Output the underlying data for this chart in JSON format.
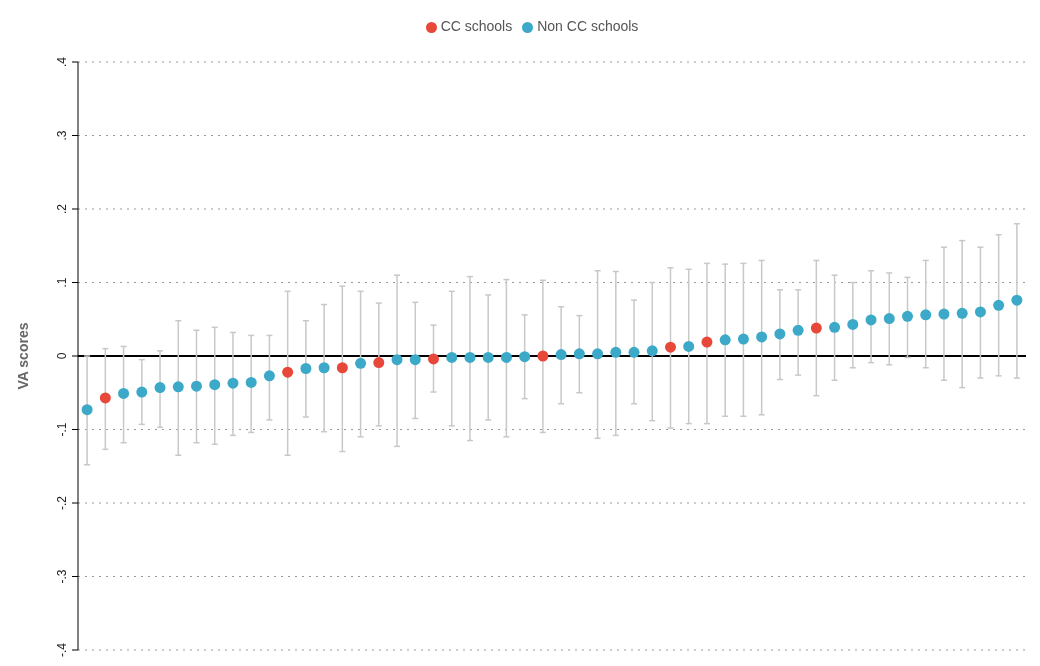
{
  "chart_data": {
    "type": "scatter",
    "ylabel": "VA scores",
    "categories": [
      null,
      null,
      null,
      null,
      null,
      null,
      null,
      null,
      null,
      null,
      null,
      null,
      null,
      null,
      null,
      null,
      null,
      null,
      null,
      null,
      null,
      null,
      null,
      null,
      null,
      null,
      null,
      null,
      null,
      null,
      null,
      null,
      null,
      null,
      null,
      null,
      null,
      null,
      null,
      null,
      null,
      null,
      null,
      null,
      null,
      null,
      null,
      null,
      null,
      null,
      null,
      null
    ],
    "series": [
      {
        "name": "Non CC schools",
        "color": "#3ba9c7",
        "values": [
          -0.073,
          null,
          -0.051,
          -0.049,
          -0.043,
          -0.042,
          -0.041,
          -0.039,
          -0.037,
          -0.036,
          -0.027,
          null,
          -0.017,
          -0.016,
          null,
          -0.01,
          null,
          -0.005,
          -0.005,
          null,
          -0.002,
          -0.002,
          -0.002,
          -0.002,
          -0.001,
          null,
          0.002,
          0.003,
          0.003,
          0.005,
          0.005,
          0.007,
          null,
          0.013,
          null,
          0.022,
          0.023,
          0.026,
          0.03,
          0.035,
          null,
          0.039,
          0.043,
          0.049,
          0.051,
          0.054,
          0.056,
          0.057,
          0.058,
          0.06,
          0.069,
          0.076
        ],
        "errors": [
          [
            -0.148,
            0.0
          ],
          null,
          [
            -0.118,
            0.013
          ],
          [
            -0.093,
            -0.005
          ],
          [
            -0.097,
            0.007
          ],
          [
            -0.135,
            0.048
          ],
          [
            -0.118,
            0.035
          ],
          [
            -0.12,
            0.039
          ],
          [
            -0.108,
            0.032
          ],
          [
            -0.104,
            0.028
          ],
          [
            -0.087,
            0.028
          ],
          null,
          [
            -0.083,
            0.048
          ],
          [
            -0.103,
            0.07
          ],
          null,
          [
            -0.11,
            0.088
          ],
          null,
          [
            -0.123,
            0.11
          ],
          [
            -0.085,
            0.073
          ],
          null,
          [
            -0.095,
            0.088
          ],
          [
            -0.115,
            0.108
          ],
          [
            -0.087,
            0.083
          ],
          [
            -0.11,
            0.104
          ],
          [
            -0.058,
            0.056
          ],
          null,
          [
            -0.065,
            0.067
          ],
          [
            -0.05,
            0.055
          ],
          [
            -0.112,
            0.116
          ],
          [
            -0.108,
            0.115
          ],
          [
            -0.065,
            0.076
          ],
          [
            -0.088,
            0.1
          ],
          null,
          [
            -0.092,
            0.118
          ],
          null,
          [
            -0.082,
            0.125
          ],
          [
            -0.082,
            0.126
          ],
          [
            -0.08,
            0.13
          ],
          [
            -0.032,
            0.09
          ],
          [
            -0.026,
            0.09
          ],
          null,
          [
            -0.033,
            0.11
          ],
          [
            -0.016,
            0.1
          ],
          [
            -0.009,
            0.116
          ],
          [
            -0.012,
            0.113
          ],
          [
            -0.002,
            0.107
          ],
          [
            -0.016,
            0.13
          ],
          [
            -0.033,
            0.148
          ],
          [
            -0.043,
            0.157
          ],
          [
            -0.03,
            0.148
          ],
          [
            -0.027,
            0.165
          ],
          [
            -0.03,
            0.18
          ]
        ]
      },
      {
        "name": "CC schools",
        "color": "#e8483a",
        "values": [
          null,
          -0.057,
          null,
          null,
          null,
          null,
          null,
          null,
          null,
          null,
          null,
          -0.022,
          null,
          null,
          -0.016,
          null,
          -0.009,
          null,
          null,
          -0.004,
          null,
          null,
          null,
          null,
          null,
          0.0,
          null,
          null,
          null,
          null,
          null,
          null,
          0.012,
          null,
          0.019,
          null,
          null,
          null,
          null,
          null,
          0.038,
          null,
          null,
          null,
          null,
          null,
          null,
          null,
          null,
          null,
          null,
          null
        ],
        "errors": [
          null,
          [
            -0.127,
            0.01
          ],
          null,
          null,
          null,
          null,
          null,
          null,
          null,
          null,
          null,
          [
            -0.135,
            0.088
          ],
          null,
          null,
          [
            -0.13,
            0.095
          ],
          null,
          [
            -0.095,
            0.072
          ],
          null,
          null,
          [
            -0.049,
            0.042
          ],
          null,
          null,
          null,
          null,
          null,
          [
            -0.104,
            0.103
          ],
          null,
          null,
          null,
          null,
          null,
          null,
          [
            -0.098,
            0.12
          ],
          null,
          [
            -0.092,
            0.126
          ],
          null,
          null,
          null,
          null,
          null,
          [
            -0.054,
            0.13
          ],
          null,
          null,
          null,
          null,
          null,
          null,
          null,
          null,
          null,
          null,
          null
        ]
      }
    ],
    "ylim": [
      -0.4,
      0.4
    ],
    "yticks": [
      {
        "value": -0.4,
        "label": "-.4"
      },
      {
        "value": -0.3,
        "label": "-.3"
      },
      {
        "value": -0.2,
        "label": "-.2"
      },
      {
        "value": -0.1,
        "label": "-.1"
      },
      {
        "value": 0,
        "label": "0"
      },
      {
        "value": 0.1,
        "label": ".1"
      },
      {
        "value": 0.2,
        "label": ".2"
      },
      {
        "value": 0.3,
        "label": ".3"
      },
      {
        "value": 0.4,
        "label": ".4"
      }
    ],
    "ref_lines": [
      {
        "axis": "y",
        "value": 0,
        "color": "#000000"
      }
    ],
    "grid": "y",
    "legend": "top",
    "marker": "circle",
    "tick_labels": "y"
  }
}
